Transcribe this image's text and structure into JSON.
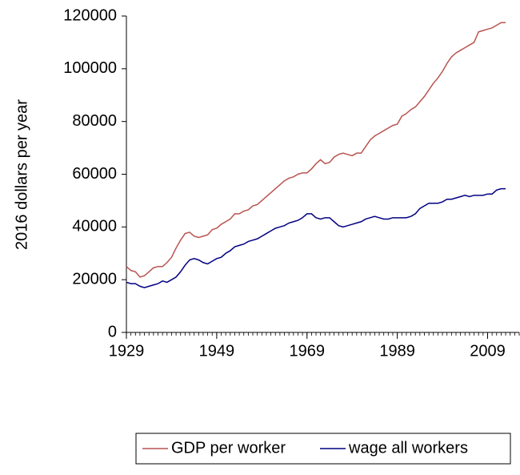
{
  "chart_data": {
    "type": "line",
    "y_label": "2016 dollars per year",
    "x": [
      1929,
      1930,
      1931,
      1932,
      1933,
      1934,
      1935,
      1936,
      1937,
      1938,
      1939,
      1940,
      1941,
      1942,
      1943,
      1944,
      1945,
      1946,
      1947,
      1948,
      1949,
      1950,
      1951,
      1952,
      1953,
      1954,
      1955,
      1956,
      1957,
      1958,
      1959,
      1960,
      1961,
      1962,
      1963,
      1964,
      1965,
      1966,
      1967,
      1968,
      1969,
      1970,
      1971,
      1972,
      1973,
      1974,
      1975,
      1976,
      1977,
      1978,
      1979,
      1980,
      1981,
      1982,
      1983,
      1984,
      1985,
      1986,
      1987,
      1988,
      1989,
      1990,
      1991,
      1992,
      1993,
      1994,
      1995,
      1996,
      1997,
      1998,
      1999,
      2000,
      2001,
      2002,
      2003,
      2004,
      2005,
      2006,
      2007,
      2008,
      2009,
      2010,
      2011,
      2012,
      2013
    ],
    "series": [
      {
        "name": "GDP per worker",
        "color": "#b85450",
        "values": [
          25000,
          23500,
          23000,
          21000,
          21500,
          23000,
          24500,
          25000,
          25000,
          26500,
          28500,
          32000,
          35000,
          37500,
          38000,
          36500,
          36000,
          36500,
          37000,
          39000,
          39500,
          41000,
          42000,
          43000,
          45000,
          45000,
          46000,
          46500,
          48000,
          48500,
          50000,
          51500,
          53000,
          54500,
          56000,
          57500,
          58500,
          59000,
          60000,
          60500,
          60500,
          62000,
          64000,
          65500,
          64000,
          64500,
          66500,
          67500,
          68000,
          67500,
          67000,
          68000,
          68000,
          70500,
          73000,
          74500,
          75500,
          76500,
          77500,
          78500,
          79000,
          82000,
          83000,
          84500,
          85500,
          87500,
          89500,
          92000,
          94500,
          96500,
          99000,
          102000,
          104500,
          106000,
          107000,
          108000,
          109000,
          110000,
          114000,
          114500,
          115000,
          115500,
          116500,
          117500,
          117500
        ]
      },
      {
        "name": "wage all workers",
        "color": "#000080",
        "values": [
          19000,
          18500,
          18500,
          17500,
          17000,
          17500,
          18000,
          18500,
          19500,
          19000,
          20000,
          21000,
          23000,
          25500,
          27500,
          28000,
          27500,
          26500,
          26000,
          27000,
          28000,
          28500,
          30000,
          31000,
          32500,
          33000,
          33500,
          34500,
          35000,
          35500,
          36500,
          37500,
          38500,
          39500,
          40000,
          40500,
          41500,
          42000,
          42500,
          43500,
          45000,
          45000,
          43500,
          43000,
          43500,
          43500,
          42000,
          40500,
          40000,
          40500,
          41000,
          41500,
          42000,
          43000,
          43500,
          44000,
          43500,
          43000,
          43000,
          43500,
          43500,
          43500,
          43500,
          44000,
          45000,
          47000,
          48000,
          49000,
          49000,
          49000,
          49500,
          50500,
          50500,
          51000,
          51500,
          52000,
          51500,
          52000,
          52000,
          52000,
          52500,
          52500,
          54000,
          54500,
          54500
        ]
      }
    ],
    "xlim": [
      1929,
      2016
    ],
    "xticks": [
      1929,
      1949,
      1969,
      1989,
      2009
    ],
    "ylim": [
      0,
      120000
    ],
    "yticks": [
      0,
      20000,
      40000,
      60000,
      80000,
      100000,
      120000
    ],
    "legend": "bottom"
  }
}
